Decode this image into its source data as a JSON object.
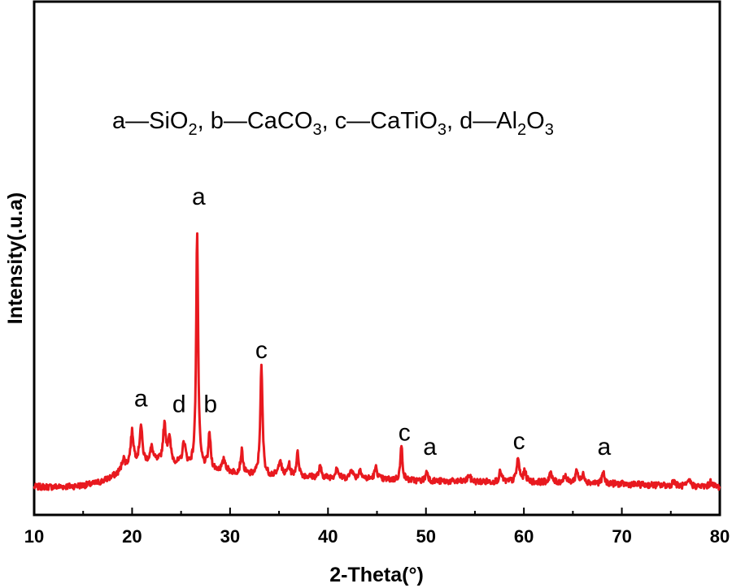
{
  "chart_data": {
    "type": "line",
    "title": "",
    "xlabel": "2-Theta(°)",
    "ylabel": "Intensity(.u.a)",
    "xlim": [
      10,
      80
    ],
    "xticks": [
      "10",
      "20",
      "30",
      "40",
      "50",
      "60",
      "70",
      "80"
    ],
    "y_tick_labels_shown": false,
    "grid": false,
    "line_color": "#e8191f",
    "legend_annotation": [
      {
        "letter": "a",
        "formula": [
          "Si",
          "O",
          "2"
        ]
      },
      {
        "letter": "b",
        "formula": [
          "CaC",
          "O",
          "3"
        ]
      },
      {
        "letter": "c",
        "formula": [
          "CaTi",
          "O",
          "3"
        ]
      },
      {
        "letter": "d",
        "formula": [
          "Al",
          "2",
          "O",
          "3"
        ]
      }
    ],
    "legend_text": {
      "a": "a—SiO",
      "a_sub": "2",
      "b": ", b—CaCO",
      "b_sub": "3",
      "c": ", c—CaTiO",
      "c_sub": "3",
      "d1": ", d—Al",
      "d_sub1": "2",
      "d2": "O",
      "d_sub2": "3"
    },
    "peak_annotations": [
      {
        "text": "a",
        "x": 20.9,
        "y": 0.29
      },
      {
        "text": "d",
        "x": 24.8,
        "y": 0.27
      },
      {
        "text": "b",
        "x": 28.0,
        "y": 0.27
      },
      {
        "text": "a",
        "x": 26.8,
        "y": 1.0
      },
      {
        "text": "c",
        "x": 33.2,
        "y": 0.46
      },
      {
        "text": "c",
        "x": 47.8,
        "y": 0.17
      },
      {
        "text": "a",
        "x": 50.4,
        "y": 0.12
      },
      {
        "text": "c",
        "x": 59.5,
        "y": 0.14
      },
      {
        "text": "a",
        "x": 68.2,
        "y": 0.12
      }
    ],
    "baseline": [
      [
        10,
        0.03
      ],
      [
        12,
        0.03
      ],
      [
        14,
        0.032
      ],
      [
        15,
        0.035
      ],
      [
        16,
        0.04
      ],
      [
        17,
        0.05
      ],
      [
        18,
        0.065
      ],
      [
        19,
        0.085
      ],
      [
        20,
        0.11
      ],
      [
        22,
        0.115
      ],
      [
        24,
        0.11
      ],
      [
        26,
        0.1
      ],
      [
        28,
        0.09
      ],
      [
        30,
        0.08
      ],
      [
        32,
        0.07
      ],
      [
        34,
        0.068
      ],
      [
        36,
        0.068
      ],
      [
        40,
        0.062
      ],
      [
        45,
        0.056
      ],
      [
        50,
        0.05
      ],
      [
        55,
        0.048
      ],
      [
        60,
        0.047
      ],
      [
        65,
        0.045
      ],
      [
        70,
        0.04
      ],
      [
        75,
        0.034
      ],
      [
        80,
        0.03
      ]
    ],
    "peaks": [
      {
        "x": 19.1,
        "h": 0.04,
        "w": 0.18
      },
      {
        "x": 20.0,
        "h": 0.11,
        "w": 0.18
      },
      {
        "x": 20.9,
        "h": 0.13,
        "w": 0.16
      },
      {
        "x": 22.0,
        "h": 0.05,
        "w": 0.18
      },
      {
        "x": 23.3,
        "h": 0.13,
        "w": 0.18
      },
      {
        "x": 23.8,
        "h": 0.08,
        "w": 0.18
      },
      {
        "x": 25.3,
        "h": 0.08,
        "w": 0.18
      },
      {
        "x": 26.64,
        "h": 0.83,
        "w": 0.12
      },
      {
        "x": 27.9,
        "h": 0.12,
        "w": 0.14
      },
      {
        "x": 29.4,
        "h": 0.04,
        "w": 0.2
      },
      {
        "x": 31.2,
        "h": 0.08,
        "w": 0.15
      },
      {
        "x": 33.2,
        "h": 0.38,
        "w": 0.14
      },
      {
        "x": 35.1,
        "h": 0.06,
        "w": 0.15
      },
      {
        "x": 36.0,
        "h": 0.04,
        "w": 0.15
      },
      {
        "x": 36.9,
        "h": 0.08,
        "w": 0.15
      },
      {
        "x": 39.2,
        "h": 0.035,
        "w": 0.15
      },
      {
        "x": 40.9,
        "h": 0.04,
        "w": 0.15
      },
      {
        "x": 42.4,
        "h": 0.035,
        "w": 0.15
      },
      {
        "x": 43.3,
        "h": 0.035,
        "w": 0.15
      },
      {
        "x": 44.9,
        "h": 0.04,
        "w": 0.18
      },
      {
        "x": 47.5,
        "h": 0.12,
        "w": 0.13
      },
      {
        "x": 50.1,
        "h": 0.035,
        "w": 0.15
      },
      {
        "x": 54.4,
        "h": 0.025,
        "w": 0.15
      },
      {
        "x": 57.6,
        "h": 0.035,
        "w": 0.15
      },
      {
        "x": 59.4,
        "h": 0.08,
        "w": 0.17
      },
      {
        "x": 60.1,
        "h": 0.035,
        "w": 0.15
      },
      {
        "x": 62.7,
        "h": 0.035,
        "w": 0.15
      },
      {
        "x": 64.2,
        "h": 0.025,
        "w": 0.15
      },
      {
        "x": 65.4,
        "h": 0.045,
        "w": 0.15
      },
      {
        "x": 66.1,
        "h": 0.03,
        "w": 0.15
      },
      {
        "x": 68.1,
        "h": 0.035,
        "w": 0.15
      },
      {
        "x": 75.3,
        "h": 0.02,
        "w": 0.15
      },
      {
        "x": 76.9,
        "h": 0.02,
        "w": 0.15
      },
      {
        "x": 79.1,
        "h": 0.02,
        "w": 0.15
      }
    ]
  }
}
